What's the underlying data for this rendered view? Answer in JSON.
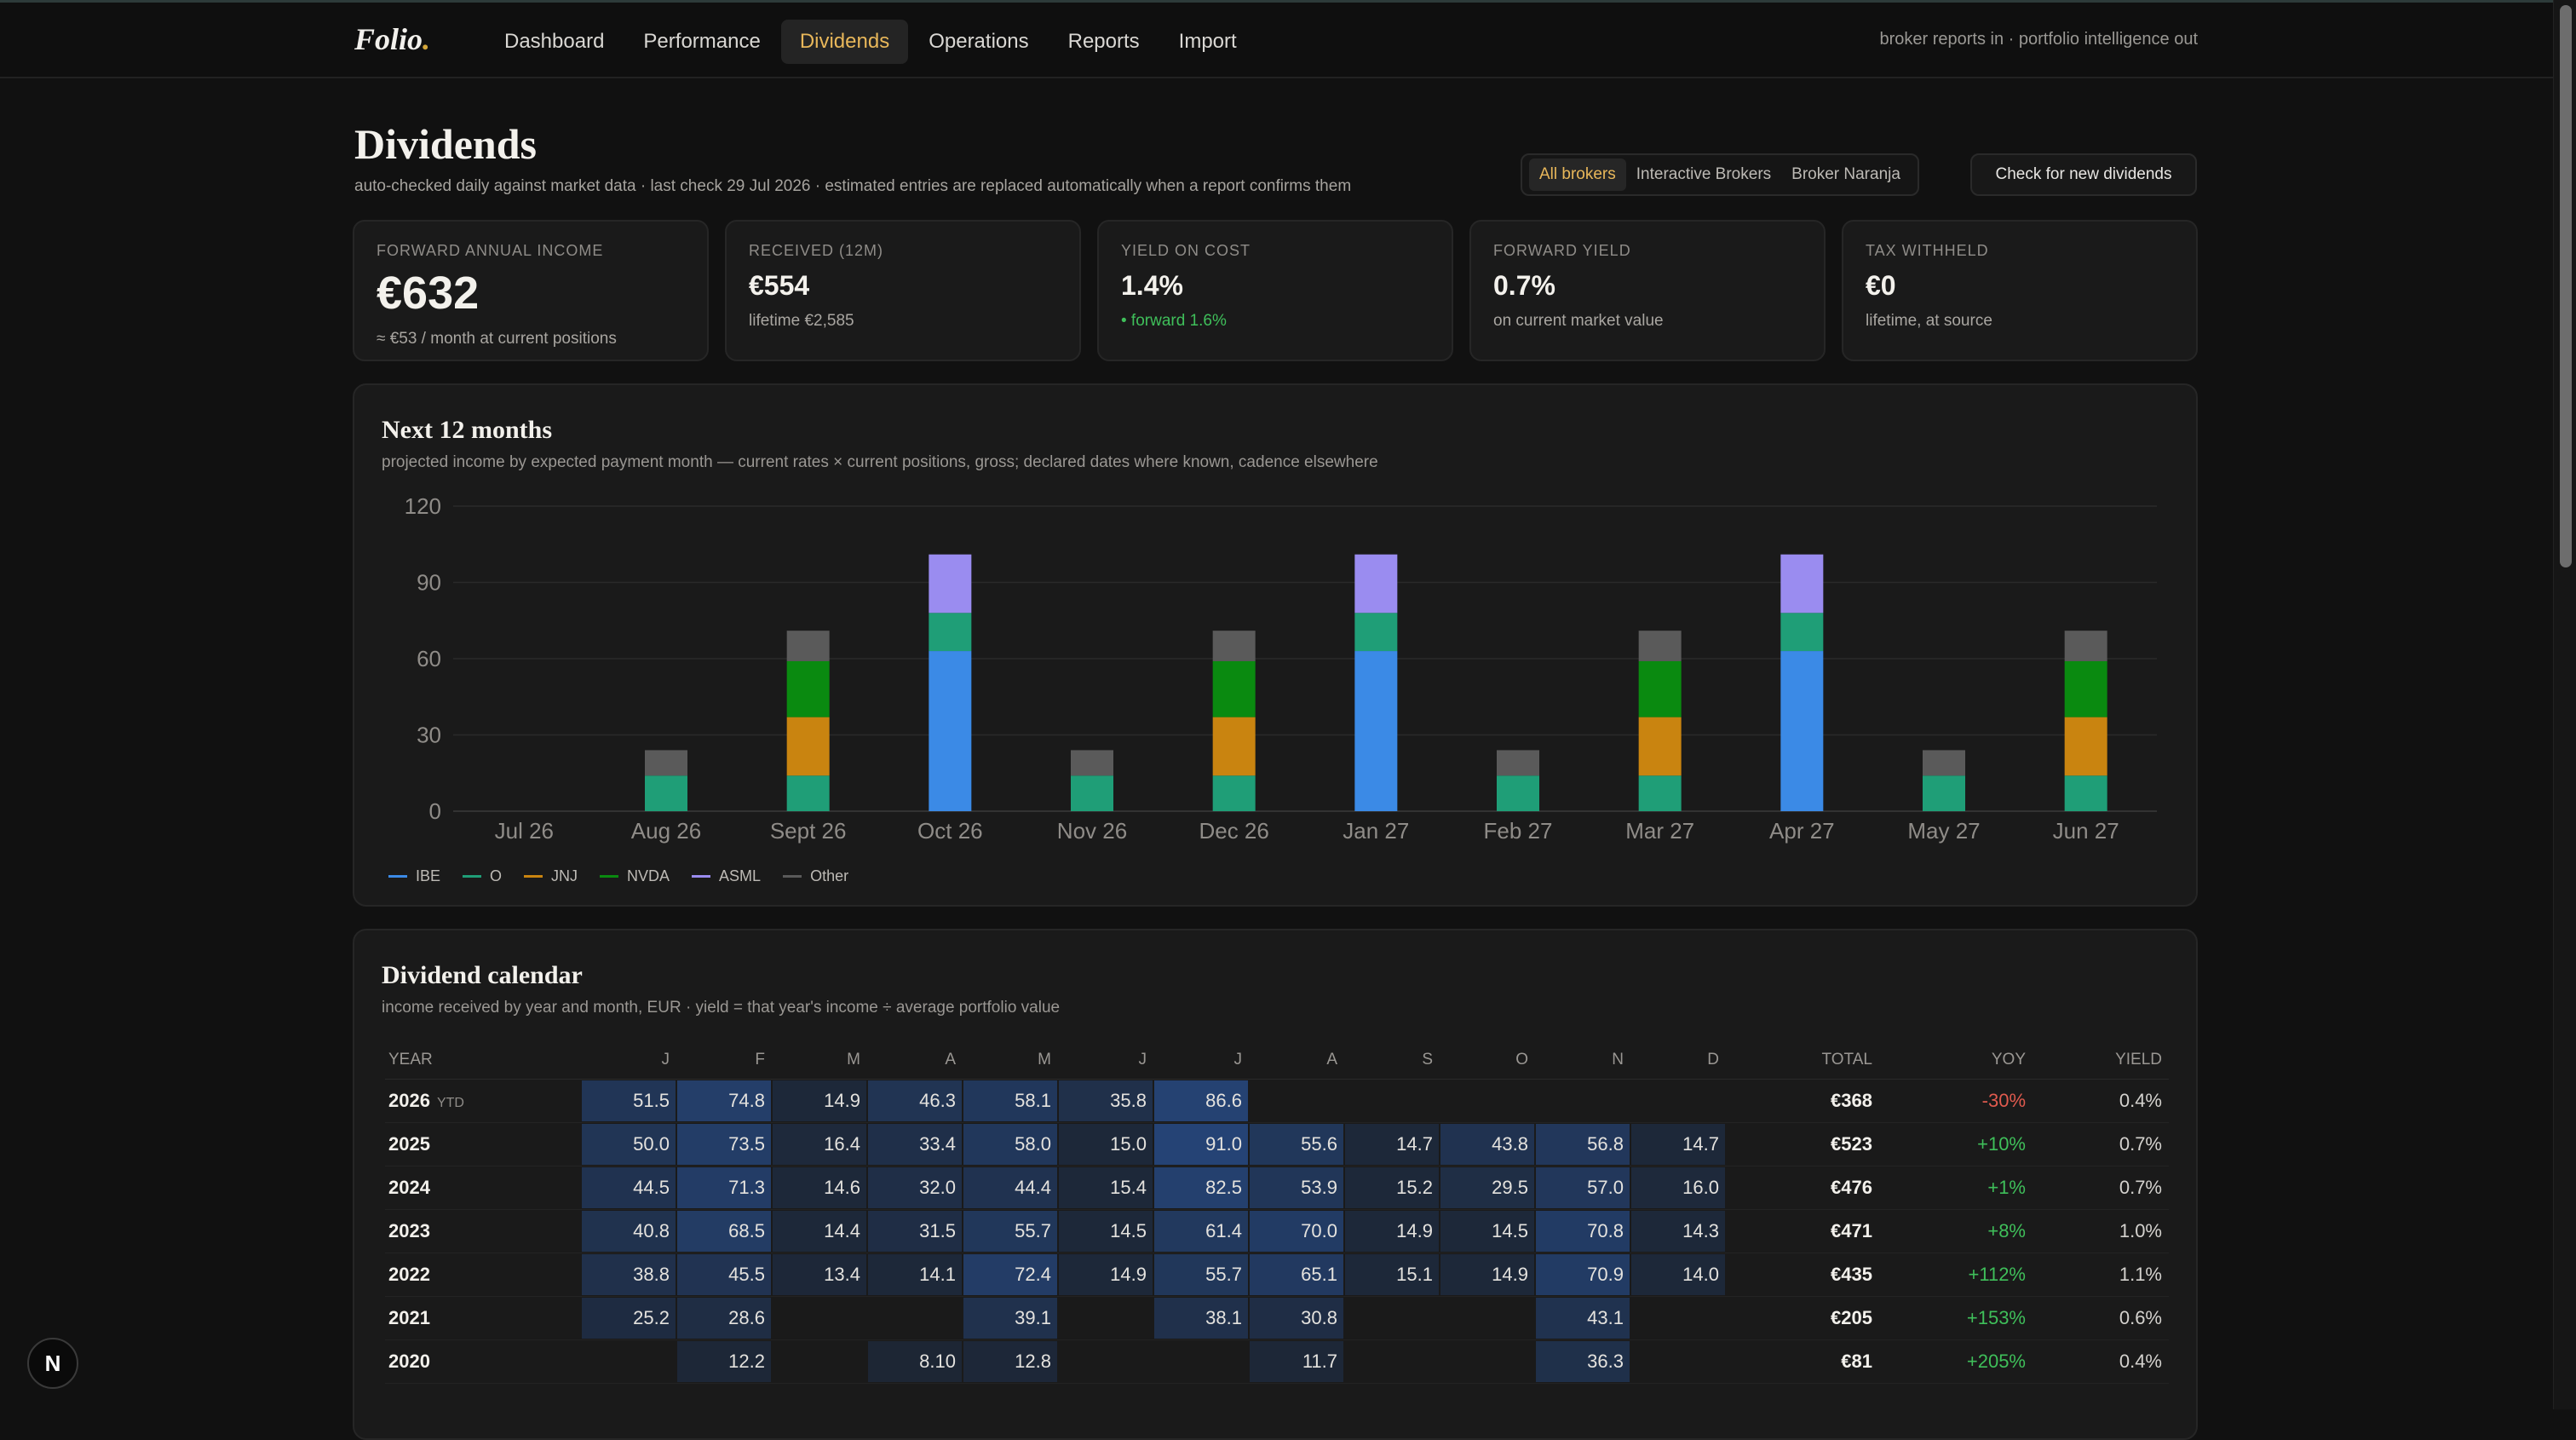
{
  "brand": {
    "name": "Folio",
    "dot": "."
  },
  "nav": {
    "items": [
      "Dashboard",
      "Performance",
      "Dividends",
      "Operations",
      "Reports",
      "Import"
    ],
    "active_index": 2
  },
  "tagline": "broker reports in · portfolio intelligence out",
  "page": {
    "title": "Dividends",
    "subtitle": "auto-checked daily against market data · last check 29 Jul 2026 · estimated entries are replaced automatically when a report confirms them"
  },
  "brokers": {
    "options": [
      "All brokers",
      "Interactive Brokers",
      "Broker Naranja"
    ],
    "active_index": 0
  },
  "check_button": "Check for new dividends",
  "stats": [
    {
      "label": "Forward annual income",
      "value": "€632",
      "note": "≈ €53 / month at current positions",
      "note_color": "neutral"
    },
    {
      "label": "Received (12M)",
      "value": "€554",
      "note": "lifetime €2,585",
      "note_color": "neutral"
    },
    {
      "label": "Yield on cost",
      "value": "1.4%",
      "note": "• forward 1.6%",
      "note_color": "positive"
    },
    {
      "label": "Forward yield",
      "value": "0.7%",
      "note": "on current market value",
      "note_color": "neutral"
    },
    {
      "label": "Tax withheld",
      "value": "€0",
      "note": "lifetime, at source",
      "note_color": "neutral"
    }
  ],
  "projection": {
    "title": "Next 12 months",
    "subtitle": "projected income by expected payment month — current rates × current positions, gross; declared dates where known, cadence elsewhere"
  },
  "chart_data": {
    "type": "bar",
    "stacked": true,
    "categories": [
      "Jul 26",
      "Aug 26",
      "Sept 26",
      "Oct 26",
      "Nov 26",
      "Dec 26",
      "Jan 27",
      "Feb 27",
      "Mar 27",
      "Apr 27",
      "May 27",
      "Jun 27"
    ],
    "ylim": [
      0,
      120
    ],
    "yticks": [
      0,
      30,
      60,
      90,
      120
    ],
    "grid": true,
    "legend_position": "bottom-left",
    "series": [
      {
        "name": "IBE",
        "color": "#3b8ae6",
        "values": [
          0,
          0,
          0,
          63,
          0,
          0,
          63,
          0,
          0,
          63,
          0,
          0
        ]
      },
      {
        "name": "O",
        "color": "#1f9e77",
        "values": [
          0,
          14,
          14,
          15,
          14,
          14,
          15,
          14,
          14,
          15,
          14,
          14
        ]
      },
      {
        "name": "JNJ",
        "color": "#c98410",
        "values": [
          0,
          0,
          23,
          0,
          0,
          23,
          0,
          0,
          23,
          0,
          0,
          23
        ]
      },
      {
        "name": "NVDA",
        "color": "#0a8a10",
        "values": [
          0,
          0,
          22,
          0,
          0,
          22,
          0,
          0,
          22,
          0,
          0,
          22
        ]
      },
      {
        "name": "ASML",
        "color": "#9a8cf0",
        "values": [
          0,
          0,
          0,
          23,
          0,
          0,
          23,
          0,
          0,
          23,
          0,
          0
        ]
      },
      {
        "name": "Other",
        "color": "#5a5a5a",
        "values": [
          0,
          10,
          12,
          0,
          10,
          12,
          0,
          10,
          12,
          0,
          10,
          12
        ]
      }
    ]
  },
  "calendar": {
    "title": "Dividend calendar",
    "subtitle": "income received by year and month, EUR · yield = that year's income ÷ average portfolio value",
    "headers": [
      "YEAR",
      "J",
      "F",
      "M",
      "A",
      "M",
      "J",
      "J",
      "A",
      "S",
      "O",
      "N",
      "D",
      "TOTAL",
      "YOY",
      "YIELD"
    ],
    "ytd_label": "YTD",
    "rows": [
      {
        "year": "2026",
        "ytd": true,
        "months": [
          "51.5",
          "74.8",
          "14.9",
          "46.3",
          "58.1",
          "35.8",
          "86.6",
          "",
          "",
          "",
          "",
          ""
        ],
        "total": "€368",
        "yoy": "-30%",
        "yield": "0.4%"
      },
      {
        "year": "2025",
        "ytd": false,
        "months": [
          "50.0",
          "73.5",
          "16.4",
          "33.4",
          "58.0",
          "15.0",
          "91.0",
          "55.6",
          "14.7",
          "43.8",
          "56.8",
          "14.7"
        ],
        "total": "€523",
        "yoy": "+10%",
        "yield": "0.7%"
      },
      {
        "year": "2024",
        "ytd": false,
        "months": [
          "44.5",
          "71.3",
          "14.6",
          "32.0",
          "44.4",
          "15.4",
          "82.5",
          "53.9",
          "15.2",
          "29.5",
          "57.0",
          "16.0"
        ],
        "total": "€476",
        "yoy": "+1%",
        "yield": "0.7%"
      },
      {
        "year": "2023",
        "ytd": false,
        "months": [
          "40.8",
          "68.5",
          "14.4",
          "31.5",
          "55.7",
          "14.5",
          "61.4",
          "70.0",
          "14.9",
          "14.5",
          "70.8",
          "14.3"
        ],
        "total": "€471",
        "yoy": "+8%",
        "yield": "1.0%"
      },
      {
        "year": "2022",
        "ytd": false,
        "months": [
          "38.8",
          "45.5",
          "13.4",
          "14.1",
          "72.4",
          "14.9",
          "55.7",
          "65.1",
          "15.1",
          "14.9",
          "70.9",
          "14.0"
        ],
        "total": "€435",
        "yoy": "+112%",
        "yield": "1.1%"
      },
      {
        "year": "2021",
        "ytd": false,
        "months": [
          "25.2",
          "28.6",
          "",
          "",
          "39.1",
          "",
          "38.1",
          "30.8",
          "",
          "",
          "43.1",
          ""
        ],
        "total": "€205",
        "yoy": "+153%",
        "yield": "0.6%"
      },
      {
        "year": "2020",
        "ytd": false,
        "months": [
          "",
          "12.2",
          "",
          "8.10",
          "12.8",
          "",
          "",
          "11.7",
          "",
          "",
          "36.3",
          ""
        ],
        "total": "€81",
        "yoy": "+205%",
        "yield": "0.4%"
      }
    ]
  },
  "dev_badge": "N"
}
